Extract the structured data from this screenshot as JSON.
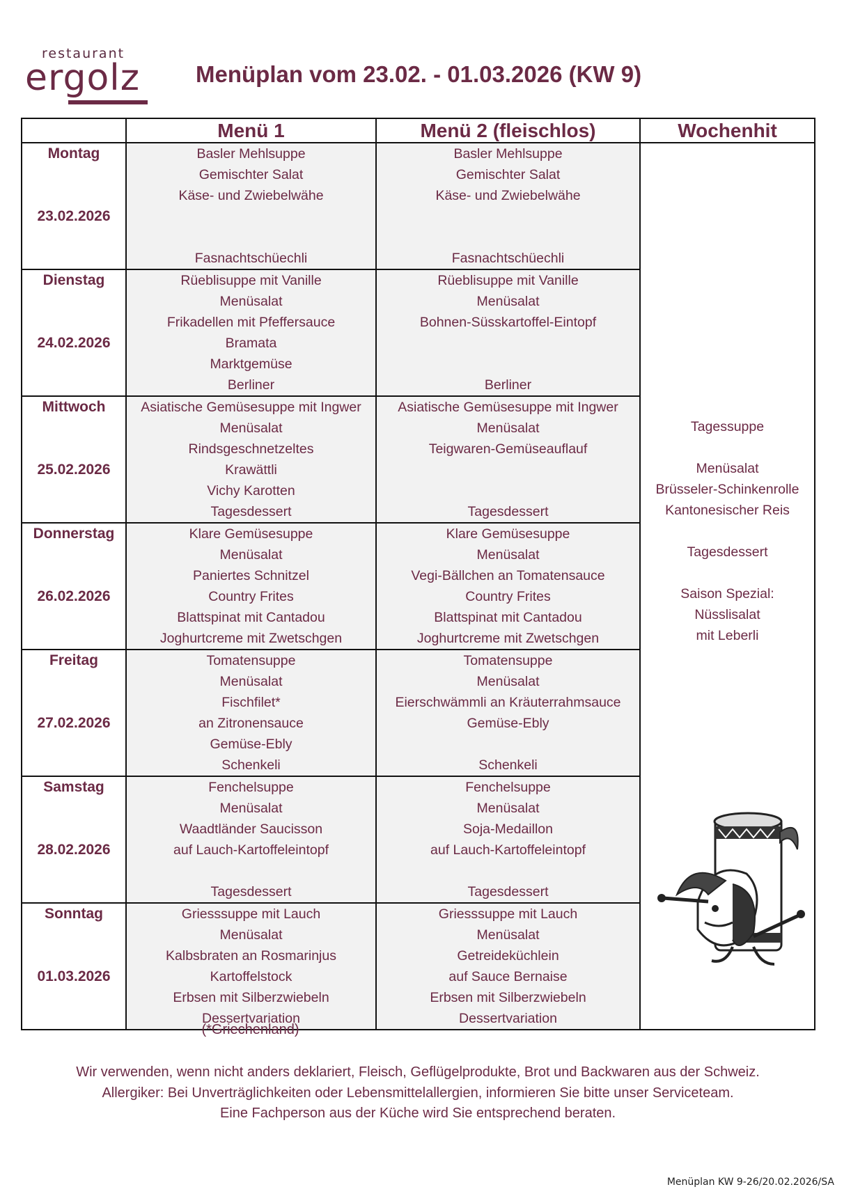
{
  "logo": {
    "small": "restaurant",
    "big": "ergolz"
  },
  "title": "Menüplan vom 23.02. - 01.03.2026 (KW 9)",
  "headers": [
    "",
    "Menü 1",
    "Menü 2 (fleischlos)",
    "Wochenhit"
  ],
  "days": [
    {
      "name": "Montag",
      "date": "23.02.2026",
      "menu1": [
        "Basler Mehlsuppe",
        "Gemischter Salat",
        "Käse- und Zwiebelwähe",
        "",
        "",
        "Fasnachtschüechli"
      ],
      "menu2": [
        "Basler Mehlsuppe",
        "Gemischter Salat",
        "Käse- und Zwiebelwähe",
        "",
        "",
        "Fasnachtschüechli"
      ]
    },
    {
      "name": "Dienstag",
      "date": "24.02.2026",
      "menu1": [
        "Rüeblisuppe mit Vanille",
        "Menüsalat",
        "Frikadellen mit Pfeffersauce",
        "Bramata",
        "Marktgemüse",
        "Berliner"
      ],
      "menu2": [
        "Rüeblisuppe mit Vanille",
        "Menüsalat",
        "Bohnen-Süsskartoffel-Eintopf",
        "",
        "",
        "Berliner"
      ]
    },
    {
      "name": "Mittwoch",
      "date": "25.02.2026",
      "menu1": [
        "Asiatische Gemüsesuppe mit Ingwer",
        "Menüsalat",
        "Rindsgeschnetzeltes",
        "Krawättli",
        "Vichy Karotten",
        "Tagesdessert"
      ],
      "menu2": [
        "Asiatische Gemüsesuppe mit Ingwer",
        "Menüsalat",
        "Teigwaren-Gemüseauflauf",
        "",
        "",
        "Tagesdessert"
      ]
    },
    {
      "name": "Donnerstag",
      "date": "26.02.2026",
      "menu1": [
        "Klare Gemüsesuppe",
        "Menüsalat",
        "Paniertes Schnitzel",
        "Country Frites",
        "Blattspinat mit Cantadou",
        "Joghurtcreme mit Zwetschgen"
      ],
      "menu2": [
        "Klare Gemüsesuppe",
        "Menüsalat",
        "Vegi-Bällchen an Tomatensauce",
        "Country Frites",
        "Blattspinat mit Cantadou",
        "Joghurtcreme mit Zwetschgen"
      ]
    },
    {
      "name": "Freitag",
      "date": "27.02.2026",
      "menu1": [
        "Tomatensuppe",
        "Menüsalat",
        "Fischfilet*",
        "an Zitronensauce",
        "Gemüse-Ebly",
        "Schenkeli"
      ],
      "menu2": [
        "Tomatensuppe",
        "Menüsalat",
        "Eierschwämmli an Kräuterrahmsauce",
        "Gemüse-Ebly",
        "",
        "Schenkeli"
      ]
    },
    {
      "name": "Samstag",
      "date": "28.02.2026",
      "menu1": [
        "Fenchelsuppe",
        "Menüsalat",
        "Waadtländer Saucisson",
        "auf Lauch-Kartoffeleintopf",
        "",
        "Tagesdessert"
      ],
      "menu2": [
        "Fenchelsuppe",
        "Menüsalat",
        "Soja-Medaillon",
        "auf Lauch-Kartoffeleintopf",
        "",
        "Tagesdessert"
      ]
    },
    {
      "name": "Sonntag",
      "date": "01.03.2026",
      "menu1": [
        "Griesssuppe mit Lauch",
        "Menüsalat",
        "Kalbsbraten an Rosmarinjus",
        "Kartoffelstock",
        "Erbsen mit Silberzwiebeln",
        "Dessertvariation"
      ],
      "menu2": [
        "Griesssuppe mit Lauch",
        "Menüsalat",
        "Getreideküchlein",
        "auf Sauce Bernaise",
        "Erbsen mit Silberzwiebeln",
        "Dessertvariation"
      ]
    }
  ],
  "wochenhit": [
    "Tagessuppe",
    "",
    "Menüsalat",
    "Brüsseler-Schinkenrolle",
    "Kantonesischer Reis",
    "",
    "Tagesdessert",
    "",
    "Saison Spezial:",
    "Nüsslisalat",
    "mit Leberli"
  ],
  "footnote": "(*Griechenland)",
  "footer": [
    "Wir verwenden, wenn nicht anders deklariert, Fleisch, Geflügelprodukte, Brot und Backwaren aus der Schweiz.",
    "Allergiker: Bei Unverträglichkeiten oder Lebensmittelallergien, informieren Sie bitte unser Serviceteam.",
    "Eine Fachperson aus der Küche wird Sie entsprechend beraten."
  ],
  "reference": "Menüplan KW 9-26/20.02.2026/SA",
  "colors": {
    "text": "#6b2a45",
    "cell_bg": "#f2f2f2",
    "border": "#111111"
  }
}
